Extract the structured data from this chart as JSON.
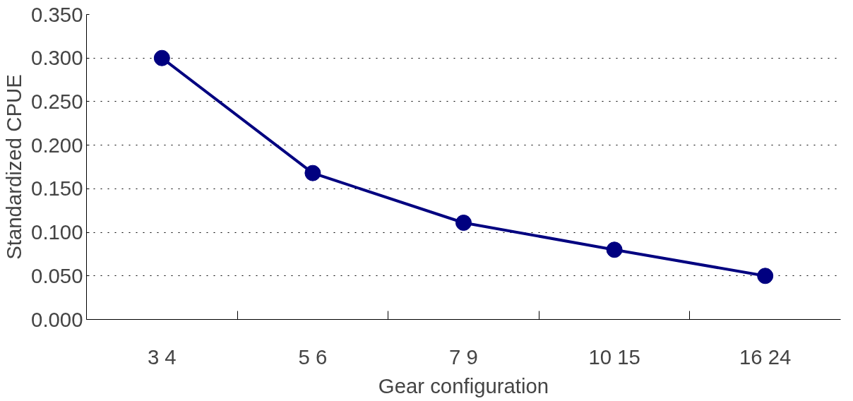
{
  "chart_data": {
    "type": "line",
    "xlabel": "Gear configuration",
    "ylabel": "Standardized CPUE",
    "categories": [
      "3 4",
      "5 6",
      "7 9",
      "10 15",
      "16 24"
    ],
    "series": [
      {
        "color": "#000080",
        "values": [
          0.3,
          0.168,
          0.111,
          0.08,
          0.05
        ]
      }
    ],
    "ylim": [
      0,
      0.35
    ],
    "yticks": [
      {
        "value": 0,
        "label": "0.000"
      },
      {
        "value": 0.05,
        "label": "0.050"
      },
      {
        "value": 0.1,
        "label": "0.100"
      },
      {
        "value": 0.15,
        "label": "0.150"
      },
      {
        "value": 0.2,
        "label": "0.200"
      },
      {
        "value": 0.25,
        "label": "0.250"
      },
      {
        "value": 0.3,
        "label": "0.300"
      },
      {
        "value": 0.35,
        "label": "0.350"
      }
    ],
    "grid": "y",
    "marker": "circle",
    "line_style": "solid"
  }
}
